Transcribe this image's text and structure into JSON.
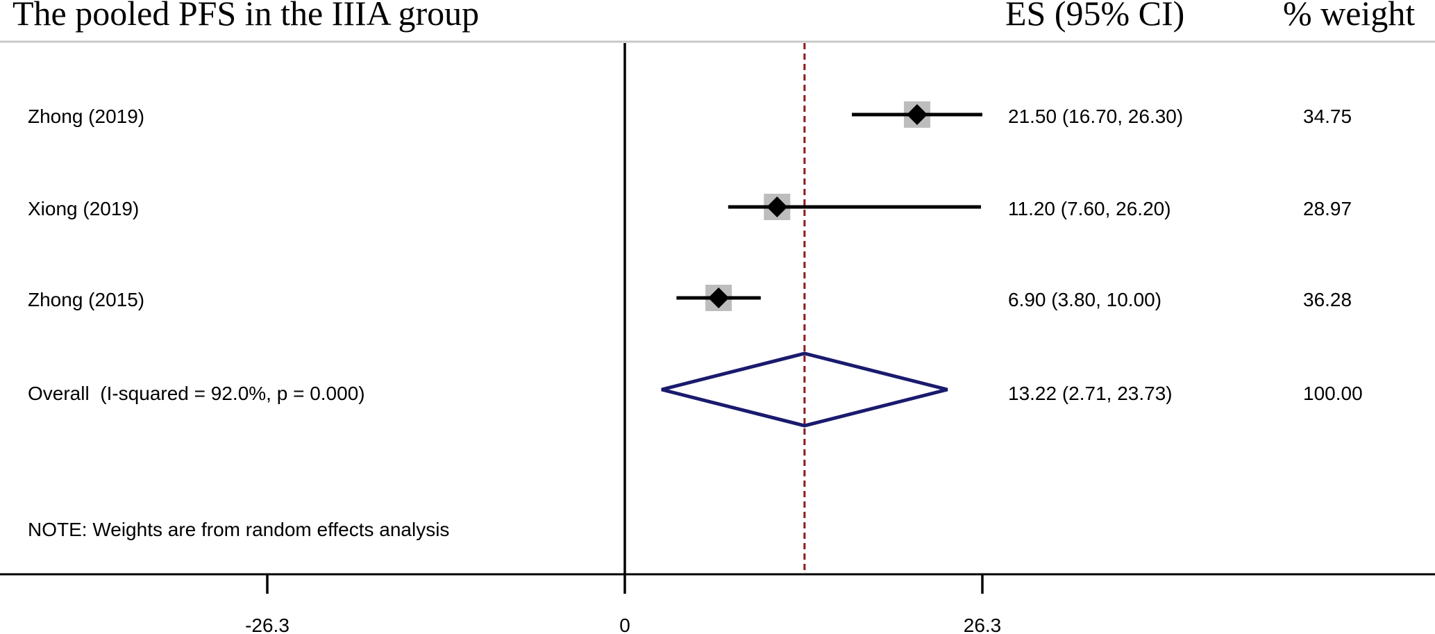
{
  "chart_data": {
    "type": "forest",
    "title": "The pooled PFS in the IIIA group",
    "columns": {
      "es_header": "ES (95% CI)",
      "weight_header": "% weight"
    },
    "studies": [
      {
        "label": "Zhong (2019)",
        "es": 21.5,
        "lower": 16.7,
        "upper": 26.3,
        "es_text": "21.50 (16.70, 26.30)",
        "weight": 34.75,
        "weight_text": "34.75"
      },
      {
        "label": "Xiong (2019)",
        "es": 11.2,
        "lower": 7.6,
        "upper": 26.2,
        "es_text": "11.20 (7.60, 26.20)",
        "weight": 28.97,
        "weight_text": "28.97"
      },
      {
        "label": "Zhong (2015)",
        "es": 6.9,
        "lower": 3.8,
        "upper": 10.0,
        "es_text": "6.90 (3.80, 10.00)",
        "weight": 36.28,
        "weight_text": "36.28"
      }
    ],
    "overall": {
      "label": "Overall  (I-squared = 92.0%, p = 0.000)",
      "es": 13.22,
      "lower": 2.71,
      "upper": 23.73,
      "es_text": "13.22 (2.71, 23.73)",
      "weight_text": "100.00"
    },
    "note": "NOTE: Weights are from random effects analysis",
    "x_ticks": [
      {
        "value": -26.3,
        "label": "-26.3"
      },
      {
        "value": 0,
        "label": "0"
      },
      {
        "value": 26.3,
        "label": "26.3"
      }
    ],
    "null_line": 0,
    "reference_line": 13.22,
    "colors": {
      "point": "#000000",
      "weight_box": "#bdbdbd",
      "ci_line": "#000000",
      "overall_diamond": "#1a1a6e",
      "reference_line": "#8b1a1a",
      "header_rule": "#c8c8c8"
    }
  }
}
